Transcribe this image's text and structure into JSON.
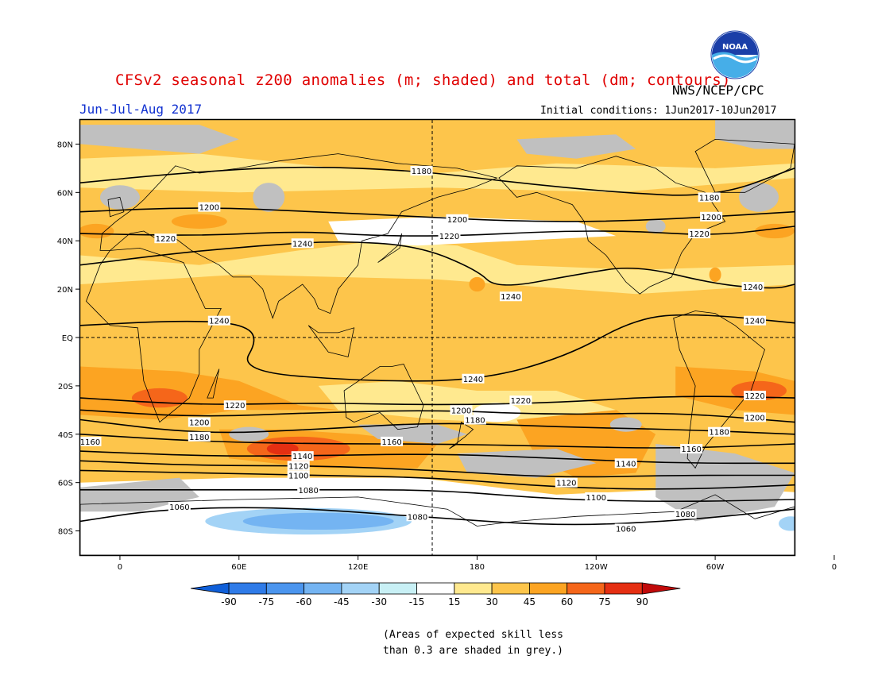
{
  "title": "CFSv2 seasonal z200 anomalies (m; shaded) and total (dm; contours)",
  "period": "Jun-Jul-Aug 2017",
  "agency": "NWS/NCEP/CPC",
  "initial_conditions": "Initial conditions: 1Jun2017-10Jun2017",
  "logo_text": "NOAA",
  "skill_note_line1": "(Areas of expected skill less",
  "skill_note_line2": "than 0.3 are shaded in grey.)",
  "map": {
    "lat_labels": [
      "80N",
      "60N",
      "40N",
      "20N",
      "EQ",
      "20S",
      "40S",
      "60S",
      "80S"
    ],
    "lon_labels": [
      "0",
      "60E",
      "120E",
      "180",
      "120W",
      "60W",
      "0"
    ],
    "contour_labels": [
      {
        "value": "1060",
        "lat": -70,
        "lon": 30
      },
      {
        "value": "1060",
        "lat": -79,
        "lon": 255
      },
      {
        "value": "1080",
        "lat": -74,
        "lon": 150
      },
      {
        "value": "1080",
        "lat": -63,
        "lon": 95
      },
      {
        "value": "1080",
        "lat": -73,
        "lon": 285
      },
      {
        "value": "1100",
        "lat": -57,
        "lon": 90
      },
      {
        "value": "1100",
        "lat": -66,
        "lon": 240
      },
      {
        "value": "1120",
        "lat": -53,
        "lon": 90
      },
      {
        "value": "1120",
        "lat": -60,
        "lon": 225
      },
      {
        "value": "1140",
        "lat": -49,
        "lon": 92
      },
      {
        "value": "1140",
        "lat": -52,
        "lon": 255
      },
      {
        "value": "1160",
        "lat": -43,
        "lon": -15
      },
      {
        "value": "1160",
        "lat": -43,
        "lon": 137
      },
      {
        "value": "1160",
        "lat": -46,
        "lon": 288
      },
      {
        "value": "1180",
        "lat": -41,
        "lon": 40
      },
      {
        "value": "1180",
        "lat": -34,
        "lon": 179
      },
      {
        "value": "1180",
        "lat": -39,
        "lon": 302
      },
      {
        "value": "1200",
        "lat": -35,
        "lon": 40
      },
      {
        "value": "1200",
        "lat": -30,
        "lon": 172
      },
      {
        "value": "1200",
        "lat": -33,
        "lon": 320
      },
      {
        "value": "1220",
        "lat": -28,
        "lon": 58
      },
      {
        "value": "1220",
        "lat": -26,
        "lon": 202
      },
      {
        "value": "1220",
        "lat": -24,
        "lon": 320
      },
      {
        "value": "1240",
        "lat": -17,
        "lon": 178
      },
      {
        "value": "1240",
        "lat": 7,
        "lon": 50
      },
      {
        "value": "1240",
        "lat": 7,
        "lon": 320
      },
      {
        "value": "1240",
        "lat": 17,
        "lon": 197
      },
      {
        "value": "1240",
        "lat": 21,
        "lon": 319
      },
      {
        "value": "1240",
        "lat": 39,
        "lon": 92
      },
      {
        "value": "1220",
        "lat": 41,
        "lon": 23
      },
      {
        "value": "1220",
        "lat": 42,
        "lon": 166
      },
      {
        "value": "1220",
        "lat": 43,
        "lon": 292
      },
      {
        "value": "1200",
        "lat": 54,
        "lon": 45
      },
      {
        "value": "1200",
        "lat": 49,
        "lon": 170
      },
      {
        "value": "1200",
        "lat": 50,
        "lon": 298
      },
      {
        "value": "1180",
        "lat": 69,
        "lon": 152
      },
      {
        "value": "1180",
        "lat": 58,
        "lon": 297
      }
    ]
  },
  "legend": {
    "levels": [
      "-90",
      "-75",
      "-60",
      "-45",
      "-30",
      "-15",
      "15",
      "30",
      "45",
      "60",
      "75",
      "90"
    ],
    "colors": [
      "#0f5fd9",
      "#2f7be8",
      "#4b95ee",
      "#74b4f2",
      "#a3d3f6",
      "#c8f0f5",
      "#ffffff",
      "#ffe98f",
      "#fdc54b",
      "#fca422",
      "#f5661a",
      "#e52f12",
      "#c10a0a"
    ]
  },
  "colors": {
    "grey_skill": "#c0c0c0",
    "title_red": "#e00000",
    "period_blue": "#1030d0"
  }
}
